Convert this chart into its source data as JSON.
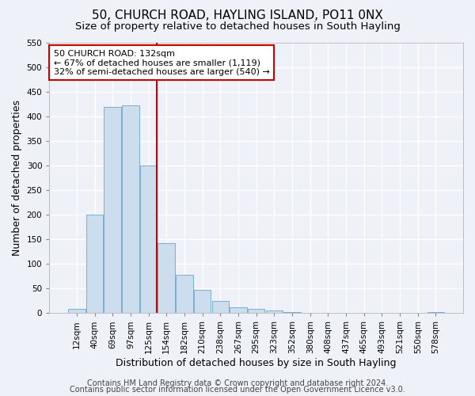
{
  "title": "50, CHURCH ROAD, HAYLING ISLAND, PO11 0NX",
  "subtitle": "Size of property relative to detached houses in South Hayling",
  "xlabel": "Distribution of detached houses by size in South Hayling",
  "ylabel": "Number of detached properties",
  "bar_labels": [
    "12sqm",
    "40sqm",
    "69sqm",
    "97sqm",
    "125sqm",
    "154sqm",
    "182sqm",
    "210sqm",
    "238sqm",
    "267sqm",
    "295sqm",
    "323sqm",
    "352sqm",
    "380sqm",
    "408sqm",
    "437sqm",
    "465sqm",
    "493sqm",
    "521sqm",
    "550sqm",
    "578sqm"
  ],
  "bar_heights": [
    8,
    200,
    420,
    422,
    300,
    143,
    78,
    48,
    24,
    12,
    8,
    5,
    2,
    0,
    0,
    0,
    0,
    0,
    0,
    0,
    2
  ],
  "bar_color": "#ccdded",
  "bar_edge_color": "#7aafce",
  "vline_color": "#cc0000",
  "ylim": [
    0,
    550
  ],
  "yticks": [
    0,
    50,
    100,
    150,
    200,
    250,
    300,
    350,
    400,
    450,
    500,
    550
  ],
  "annotation_title": "50 CHURCH ROAD: 132sqm",
  "annotation_line1": "← 67% of detached houses are smaller (1,119)",
  "annotation_line2": "32% of semi-detached houses are larger (540) →",
  "annotation_box_color": "#ffffff",
  "annotation_box_edge": "#cc0000",
  "footer1": "Contains HM Land Registry data © Crown copyright and database right 2024.",
  "footer2": "Contains public sector information licensed under the Open Government Licence v3.0.",
  "bg_color": "#eef2f8",
  "grid_color": "#ffffff",
  "title_fontsize": 11,
  "subtitle_fontsize": 9.5,
  "xlabel_fontsize": 9,
  "ylabel_fontsize": 9,
  "tick_fontsize": 7.5,
  "annotation_fontsize": 8,
  "footer_fontsize": 7
}
